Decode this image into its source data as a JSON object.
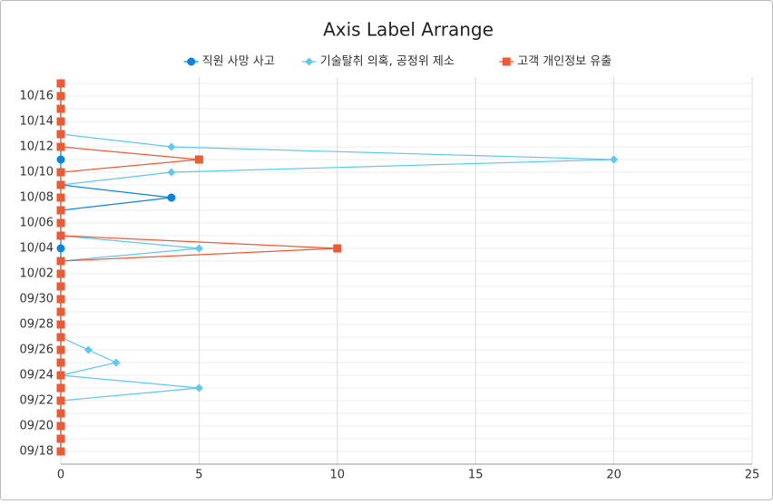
{
  "chart_data": {
    "type": "line",
    "title": "Axis Label Arrange",
    "categories": [
      "09/18",
      null,
      "09/20",
      null,
      "09/22",
      null,
      "09/24",
      null,
      "09/26",
      null,
      "09/28",
      null,
      "09/30",
      null,
      "10/02",
      null,
      "10/04",
      null,
      "10/06",
      null,
      "10/08",
      null,
      "10/10",
      null,
      "10/12",
      null,
      "10/14",
      null,
      "10/16",
      null
    ],
    "series": [
      {
        "name": "직원 사망 사고",
        "color": "#0a84e0",
        "marker": "circle",
        "values": [
          0,
          0,
          0,
          0,
          0,
          0,
          0,
          0,
          0,
          0,
          0,
          0,
          0,
          0,
          0,
          0,
          0,
          0,
          0,
          0,
          4,
          0,
          0,
          0,
          0,
          0,
          0,
          0,
          0,
          0
        ]
      },
      {
        "name": "기술탈취 의혹, 공정위 제소",
        "color": "#5fc8f0",
        "marker": "diamond",
        "values": [
          0,
          0,
          0,
          0,
          0,
          5,
          0,
          2,
          1,
          0,
          0,
          0,
          0,
          0,
          0,
          0,
          5,
          0,
          0,
          0,
          0,
          0,
          4,
          20,
          4,
          0,
          0,
          0,
          0,
          0
        ]
      },
      {
        "name": "고객 개인정보 유출",
        "color": "#f05a32",
        "marker": "square",
        "values": [
          0,
          0,
          0,
          0,
          0,
          0,
          0,
          0,
          0,
          0,
          0,
          0,
          0,
          0,
          0,
          0,
          10,
          0,
          0,
          0,
          0,
          0,
          0,
          5,
          0,
          0,
          0,
          0,
          0,
          0
        ]
      }
    ],
    "xlim": [
      0,
      25
    ],
    "xticks": [
      0,
      5,
      10,
      15,
      20,
      25
    ],
    "grid": true,
    "legend": "top"
  }
}
